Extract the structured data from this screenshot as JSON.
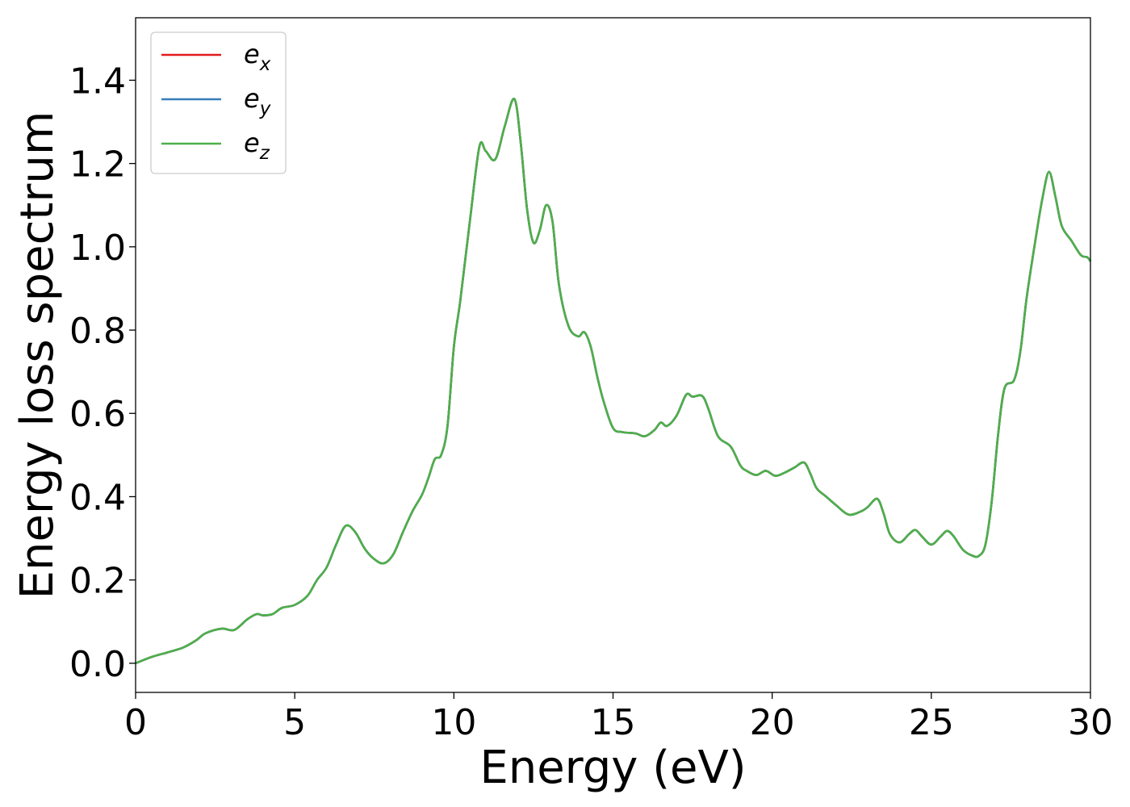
{
  "chart_data": {
    "type": "line",
    "title": "",
    "xlabel": "Energy (eV)",
    "ylabel": "Energy loss spectrum",
    "xlim": [
      0,
      30
    ],
    "ylim": [
      -0.07,
      1.55
    ],
    "xticks": [
      0,
      5,
      10,
      15,
      20,
      25,
      30
    ],
    "xtick_labels": [
      "0",
      "5",
      "10",
      "15",
      "20",
      "25",
      "30"
    ],
    "yticks": [
      0.0,
      0.2,
      0.4,
      0.6,
      0.8,
      1.0,
      1.2,
      1.4
    ],
    "ytick_labels": [
      "0.0",
      "0.2",
      "0.4",
      "0.6",
      "0.8",
      "1.0",
      "1.2",
      "1.4"
    ],
    "grid": false,
    "legend_position": "top-left",
    "x": [
      0,
      0.5,
      1.0,
      1.5,
      1.9,
      2.2,
      2.7,
      3.1,
      3.5,
      3.8,
      4.0,
      4.3,
      4.6,
      5.0,
      5.4,
      5.7,
      6.0,
      6.3,
      6.6,
      6.9,
      7.2,
      7.5,
      7.8,
      8.1,
      8.4,
      8.7,
      9.0,
      9.2,
      9.4,
      9.6,
      9.8,
      10.0,
      10.2,
      10.5,
      10.8,
      11.0,
      11.3,
      11.6,
      11.9,
      12.1,
      12.3,
      12.5,
      12.7,
      12.9,
      13.1,
      13.3,
      13.6,
      13.9,
      14.1,
      14.3,
      14.5,
      14.7,
      15.0,
      15.3,
      15.7,
      16.0,
      16.3,
      16.5,
      16.7,
      17.0,
      17.3,
      17.5,
      17.8,
      18.0,
      18.3,
      18.7,
      19.0,
      19.2,
      19.5,
      19.8,
      20.1,
      20.4,
      20.7,
      21.0,
      21.2,
      21.4,
      21.7,
      22.0,
      22.4,
      22.8,
      23.0,
      23.3,
      23.5,
      23.7,
      24.0,
      24.3,
      24.5,
      24.7,
      25.0,
      25.3,
      25.5,
      25.7,
      26.0,
      26.3,
      26.5,
      26.7,
      26.9,
      27.1,
      27.3,
      27.6,
      27.8,
      28.0,
      28.3,
      28.5,
      28.7,
      28.9,
      29.1,
      29.4,
      29.7,
      29.9,
      30.0
    ],
    "series": [
      {
        "name": "ex",
        "color": "#e41a1c",
        "values": [
          0.0,
          0.015,
          0.026,
          0.038,
          0.055,
          0.072,
          0.083,
          0.08,
          0.105,
          0.118,
          0.115,
          0.118,
          0.133,
          0.14,
          0.162,
          0.2,
          0.23,
          0.285,
          0.33,
          0.315,
          0.275,
          0.25,
          0.24,
          0.262,
          0.315,
          0.365,
          0.405,
          0.445,
          0.49,
          0.5,
          0.57,
          0.76,
          0.87,
          1.06,
          1.24,
          1.23,
          1.21,
          1.29,
          1.355,
          1.25,
          1.09,
          1.01,
          1.04,
          1.1,
          1.06,
          0.91,
          0.81,
          0.785,
          0.795,
          0.76,
          0.69,
          0.63,
          0.565,
          0.555,
          0.552,
          0.545,
          0.56,
          0.578,
          0.57,
          0.595,
          0.645,
          0.64,
          0.642,
          0.61,
          0.545,
          0.52,
          0.475,
          0.462,
          0.452,
          0.462,
          0.45,
          0.458,
          0.47,
          0.482,
          0.455,
          0.42,
          0.4,
          0.38,
          0.357,
          0.365,
          0.375,
          0.395,
          0.36,
          0.31,
          0.29,
          0.31,
          0.32,
          0.305,
          0.285,
          0.305,
          0.318,
          0.305,
          0.272,
          0.258,
          0.258,
          0.285,
          0.39,
          0.55,
          0.66,
          0.68,
          0.75,
          0.88,
          1.03,
          1.12,
          1.18,
          1.12,
          1.05,
          1.015,
          0.98,
          0.975,
          0.965
        ]
      },
      {
        "name": "ey",
        "color": "#377eb8",
        "values": [
          0.0,
          0.015,
          0.026,
          0.038,
          0.055,
          0.072,
          0.083,
          0.08,
          0.105,
          0.118,
          0.115,
          0.118,
          0.133,
          0.14,
          0.162,
          0.2,
          0.23,
          0.285,
          0.33,
          0.315,
          0.275,
          0.25,
          0.24,
          0.262,
          0.315,
          0.365,
          0.405,
          0.445,
          0.49,
          0.5,
          0.57,
          0.76,
          0.87,
          1.06,
          1.24,
          1.23,
          1.21,
          1.29,
          1.355,
          1.25,
          1.09,
          1.01,
          1.04,
          1.1,
          1.06,
          0.91,
          0.81,
          0.785,
          0.795,
          0.76,
          0.69,
          0.63,
          0.565,
          0.555,
          0.552,
          0.545,
          0.56,
          0.578,
          0.57,
          0.595,
          0.645,
          0.64,
          0.642,
          0.61,
          0.545,
          0.52,
          0.475,
          0.462,
          0.452,
          0.462,
          0.45,
          0.458,
          0.47,
          0.482,
          0.455,
          0.42,
          0.4,
          0.38,
          0.357,
          0.365,
          0.375,
          0.395,
          0.36,
          0.31,
          0.29,
          0.31,
          0.32,
          0.305,
          0.285,
          0.305,
          0.318,
          0.305,
          0.272,
          0.258,
          0.258,
          0.285,
          0.39,
          0.55,
          0.66,
          0.68,
          0.75,
          0.88,
          1.03,
          1.12,
          1.18,
          1.12,
          1.05,
          1.015,
          0.98,
          0.975,
          0.965
        ]
      },
      {
        "name": "ez",
        "color": "#4daf4a",
        "values": [
          0.0,
          0.015,
          0.026,
          0.038,
          0.055,
          0.072,
          0.083,
          0.08,
          0.105,
          0.118,
          0.115,
          0.118,
          0.133,
          0.14,
          0.162,
          0.2,
          0.23,
          0.285,
          0.33,
          0.315,
          0.275,
          0.25,
          0.24,
          0.262,
          0.315,
          0.365,
          0.405,
          0.445,
          0.49,
          0.5,
          0.57,
          0.76,
          0.87,
          1.06,
          1.24,
          1.23,
          1.21,
          1.29,
          1.355,
          1.25,
          1.09,
          1.01,
          1.04,
          1.1,
          1.06,
          0.91,
          0.81,
          0.785,
          0.795,
          0.76,
          0.69,
          0.63,
          0.565,
          0.555,
          0.552,
          0.545,
          0.56,
          0.578,
          0.57,
          0.595,
          0.645,
          0.64,
          0.642,
          0.61,
          0.545,
          0.52,
          0.475,
          0.462,
          0.452,
          0.462,
          0.45,
          0.458,
          0.47,
          0.482,
          0.455,
          0.42,
          0.4,
          0.38,
          0.357,
          0.365,
          0.375,
          0.395,
          0.36,
          0.31,
          0.29,
          0.31,
          0.32,
          0.305,
          0.285,
          0.305,
          0.318,
          0.305,
          0.272,
          0.258,
          0.258,
          0.285,
          0.39,
          0.55,
          0.66,
          0.68,
          0.75,
          0.88,
          1.03,
          1.12,
          1.18,
          1.12,
          1.05,
          1.015,
          0.98,
          0.975,
          0.965
        ]
      }
    ],
    "legend": [
      {
        "base": "e",
        "sub": "x",
        "color": "#e41a1c"
      },
      {
        "base": "e",
        "sub": "y",
        "color": "#377eb8"
      },
      {
        "base": "e",
        "sub": "z",
        "color": "#4daf4a"
      }
    ]
  }
}
